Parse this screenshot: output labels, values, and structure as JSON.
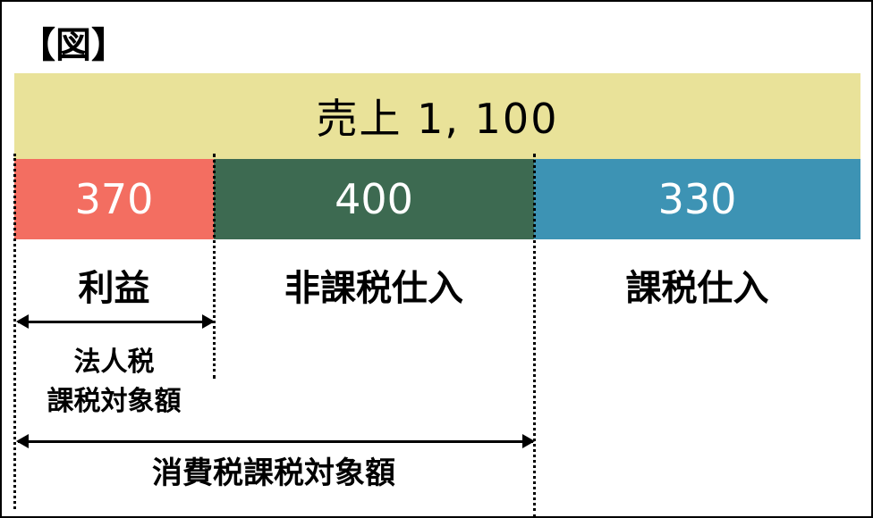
{
  "title": "【図】",
  "sales": {
    "label": "売上 1, 100"
  },
  "segments": [
    {
      "value": "370",
      "label": "利益",
      "color": "#f36e61"
    },
    {
      "value": "400",
      "label": "非課税仕入",
      "color": "#3d6a51"
    },
    {
      "value": "330",
      "label": "課税仕入",
      "color": "#3d93b4"
    }
  ],
  "corporate_tax": {
    "line1": "法人税",
    "line2": "課税対象額"
  },
  "consumption_tax": {
    "label": "消費税課税対象額"
  },
  "colors": {
    "sales": "#e9e299"
  }
}
